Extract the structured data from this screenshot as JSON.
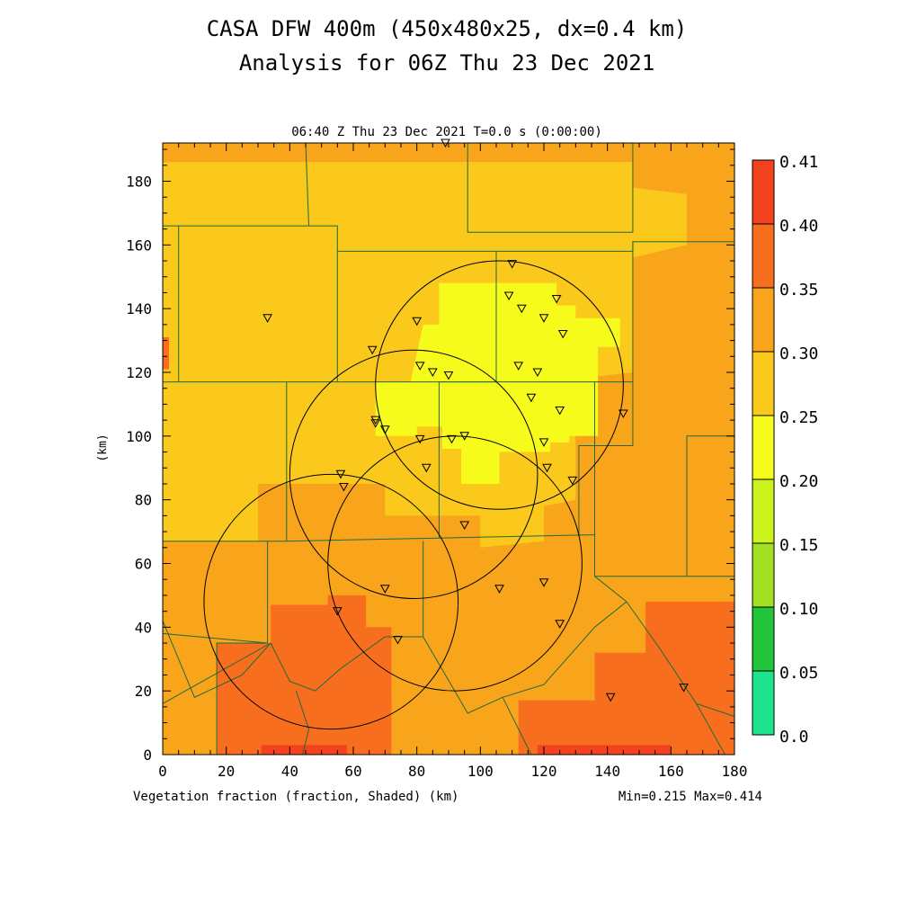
{
  "title_line1": "CASA DFW 400m (450x480x25, dx=0.4 km)",
  "title_line2": "Analysis for 06Z Thu 23 Dec 2021",
  "subtitle": "06:40 Z Thu 23 Dec 2021    T=0.0 s (0:00:00)",
  "field_label": "Vegetation fraction (fraction, Shaded)  (km)",
  "minmax": "Min=0.215 Max=0.414",
  "chart_data": {
    "type": "heatmap",
    "xlabel": "(km)",
    "ylabel": "(km)",
    "xlim": [
      0,
      180
    ],
    "ylim": [
      0,
      192
    ],
    "x_ticks": [
      0,
      20,
      40,
      60,
      80,
      100,
      120,
      140,
      160,
      180
    ],
    "y_ticks": [
      0,
      20,
      40,
      60,
      80,
      100,
      120,
      140,
      160,
      180
    ],
    "colorbar": {
      "levels": [
        "0.0",
        "0.05",
        "0.10",
        "0.15",
        "0.20",
        "0.25",
        "0.30",
        "0.35",
        "0.40",
        "0.41"
      ],
      "colors": [
        "#1de38e",
        "#22c53a",
        "#a3e021",
        "#ccf21c",
        "#f7fb1c",
        "#fbc91c",
        "#f8a51c",
        "#f76e1e",
        "#f5421e"
      ]
    },
    "regions": [
      {
        "level": 0.3,
        "x": [
          0,
          0,
          180,
          180
        ],
        "y": [
          0,
          192,
          192,
          0
        ]
      },
      {
        "level": 0.25,
        "x": [
          0,
          0,
          148,
          148,
          165,
          165,
          148,
          148,
          130,
          130,
          120,
          120,
          100,
          100,
          70,
          70,
          30,
          30,
          0
        ],
        "y": [
          67,
          186,
          186,
          178,
          176,
          160,
          156,
          120,
          118,
          80,
          78,
          67,
          65,
          75,
          75,
          85,
          85,
          67,
          67
        ]
      },
      {
        "level": 0.2,
        "x": [
          67,
          67,
          78,
          82,
          87,
          87,
          110,
          110,
          124,
          124,
          130,
          130,
          144,
          144,
          137,
          137,
          128,
          128,
          122,
          122,
          106,
          106,
          94,
          94,
          88,
          88,
          80,
          80
        ],
        "y": [
          100,
          117,
          117,
          135,
          135,
          148,
          148,
          148,
          148,
          141,
          141,
          137,
          137,
          128,
          128,
          100,
          100,
          98,
          98,
          95,
          95,
          85,
          85,
          96,
          96,
          103,
          103,
          100
        ]
      },
      {
        "level": 0.35,
        "x": [
          17,
          17,
          34,
          34,
          52,
          52,
          64,
          64,
          72,
          72,
          70,
          56,
          56,
          17
        ],
        "y": [
          0,
          35,
          35,
          47,
          47,
          50,
          50,
          40,
          40,
          14,
          0,
          0,
          0,
          0
        ]
      },
      {
        "level": 0.35,
        "x": [
          56,
          56,
          72,
          72,
          58,
          58
        ],
        "y": [
          0,
          18,
          18,
          0,
          0,
          0
        ]
      },
      {
        "level": 0.35,
        "x": [
          112,
          112,
          136,
          136,
          152,
          152,
          180,
          180,
          112
        ],
        "y": [
          0,
          17,
          17,
          32,
          32,
          48,
          48,
          0,
          0
        ]
      },
      {
        "level": 0.35,
        "x": [
          0,
          0,
          2,
          2
        ],
        "y": [
          121,
          131,
          131,
          121
        ]
      },
      {
        "level": 0.4,
        "x": [
          31,
          31,
          58,
          58
        ],
        "y": [
          0,
          3,
          3,
          0
        ]
      },
      {
        "level": 0.4,
        "x": [
          118,
          118,
          160,
          160
        ],
        "y": [
          0,
          3,
          3,
          0
        ]
      }
    ],
    "range_rings": [
      {
        "x": 53,
        "y": 48,
        "r": 40
      },
      {
        "x": 79,
        "y": 88,
        "r": 39
      },
      {
        "x": 106,
        "y": 116,
        "r": 39
      },
      {
        "x": 92,
        "y": 60,
        "r": 40
      }
    ],
    "stations": [
      [
        33,
        137
      ],
      [
        56,
        88
      ],
      [
        57,
        84
      ],
      [
        66,
        127
      ],
      [
        67,
        105
      ],
      [
        67,
        104
      ],
      [
        70,
        102
      ],
      [
        80,
        136
      ],
      [
        81,
        122
      ],
      [
        85,
        120
      ],
      [
        90,
        119
      ],
      [
        81,
        99
      ],
      [
        83,
        90
      ],
      [
        91,
        99
      ],
      [
        95,
        100
      ],
      [
        95,
        72
      ],
      [
        109,
        144
      ],
      [
        110,
        154
      ],
      [
        113,
        140
      ],
      [
        112,
        122
      ],
      [
        116,
        112
      ],
      [
        118,
        120
      ],
      [
        120,
        137
      ],
      [
        124,
        143
      ],
      [
        126,
        132
      ],
      [
        125,
        108
      ],
      [
        120,
        98
      ],
      [
        121,
        90
      ],
      [
        129,
        86
      ],
      [
        145,
        107
      ],
      [
        120,
        54
      ],
      [
        125,
        41
      ],
      [
        106,
        52
      ],
      [
        70,
        52
      ],
      [
        55,
        45
      ],
      [
        74,
        36
      ],
      [
        89,
        192
      ],
      [
        141,
        18
      ],
      [
        164,
        21
      ]
    ],
    "county_lines": [
      [
        [
          0,
          166
        ],
        [
          5,
          166
        ],
        [
          5,
          117
        ],
        [
          0,
          117
        ]
      ],
      [
        [
          5,
          166
        ],
        [
          55,
          166
        ],
        [
          55,
          117
        ],
        [
          5,
          117
        ]
      ],
      [
        [
          55,
          158
        ],
        [
          105,
          158
        ],
        [
          105,
          117
        ],
        [
          55,
          117
        ]
      ],
      [
        [
          105,
          158
        ],
        [
          148,
          158
        ],
        [
          148,
          161
        ],
        [
          180,
          161
        ]
      ],
      [
        [
          105,
          158
        ],
        [
          105,
          117
        ],
        [
          136,
          117
        ],
        [
          136,
          69
        ]
      ],
      [
        [
          45,
          192
        ],
        [
          46,
          166
        ]
      ],
      [
        [
          96,
          192
        ],
        [
          96,
          164
        ],
        [
          148,
          164
        ],
        [
          148,
          192
        ]
      ],
      [
        [
          148,
          161
        ],
        [
          148,
          117
        ],
        [
          136,
          117
        ]
      ],
      [
        [
          105,
          117
        ],
        [
          87,
          117
        ],
        [
          87,
          68
        ]
      ],
      [
        [
          39,
          117
        ],
        [
          39,
          67
        ],
        [
          87,
          68
        ]
      ],
      [
        [
          0,
          67
        ],
        [
          39,
          67
        ]
      ],
      [
        [
          87,
          68
        ],
        [
          136,
          69
        ]
      ],
      [
        [
          136,
          69
        ],
        [
          136,
          56
        ],
        [
          165,
          56
        ],
        [
          180,
          56
        ]
      ],
      [
        [
          165,
          56
        ],
        [
          165,
          100
        ],
        [
          180,
          100
        ]
      ],
      [
        [
          148,
          117
        ],
        [
          148,
          97
        ],
        [
          131,
          97
        ],
        [
          131,
          69
        ]
      ],
      [
        [
          33,
          67
        ],
        [
          33,
          35
        ],
        [
          17,
          35
        ],
        [
          17,
          0
        ]
      ],
      [
        [
          0,
          38
        ],
        [
          33,
          35
        ]
      ],
      [
        [
          0,
          16
        ],
        [
          34,
          35
        ]
      ],
      [
        [
          0,
          42
        ],
        [
          10,
          18
        ],
        [
          25,
          25
        ],
        [
          34,
          35
        ]
      ],
      [
        [
          34,
          35
        ],
        [
          40,
          23
        ],
        [
          48,
          20
        ],
        [
          56,
          27
        ],
        [
          70,
          37
        ],
        [
          82,
          37
        ]
      ],
      [
        [
          82,
          37
        ],
        [
          82,
          67
        ]
      ],
      [
        [
          82,
          37
        ],
        [
          96,
          13
        ],
        [
          107,
          18
        ],
        [
          120,
          22
        ],
        [
          136,
          40
        ],
        [
          146,
          48
        ]
      ],
      [
        [
          107,
          18
        ],
        [
          116,
          0
        ]
      ],
      [
        [
          146,
          48
        ],
        [
          136,
          56
        ]
      ],
      [
        [
          146,
          48
        ],
        [
          156,
          34
        ],
        [
          168,
          16
        ],
        [
          180,
          12
        ]
      ],
      [
        [
          168,
          16
        ],
        [
          177,
          0
        ]
      ],
      [
        [
          42,
          20
        ],
        [
          46,
          8
        ],
        [
          44,
          0
        ]
      ]
    ]
  }
}
